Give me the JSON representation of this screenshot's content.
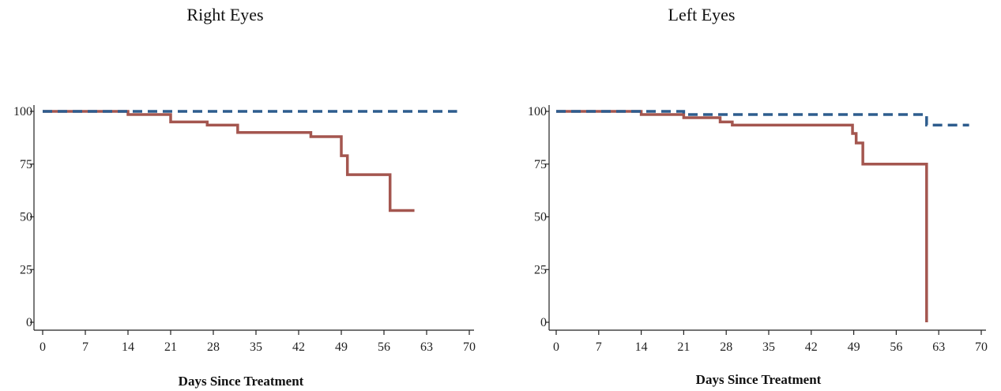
{
  "chart_data": [
    {
      "type": "line",
      "title": "Right Eyes",
      "xlabel": "Days Since Treatment",
      "ylabel": "",
      "xlim": [
        0,
        70
      ],
      "ylim": [
        0,
        100
      ],
      "xticks": [
        0,
        7,
        14,
        21,
        28,
        35,
        42,
        49,
        56,
        63,
        70
      ],
      "yticks": [
        0,
        25,
        50,
        75,
        100
      ],
      "ytick_labels": [
        "0",
        "25",
        "50",
        "75",
        "100"
      ],
      "series": [
        {
          "style": "solid",
          "color": "#a4564f",
          "step": true,
          "x": [
            0,
            14,
            21,
            27,
            32,
            44,
            49,
            50,
            57,
            61
          ],
          "y": [
            100,
            98.5,
            95,
            93.5,
            90,
            88,
            79,
            70,
            53,
            53
          ]
        },
        {
          "style": "dashed",
          "color": "#2e5d8e",
          "step": true,
          "x": [
            0,
            68
          ],
          "y": [
            100,
            100
          ]
        }
      ]
    },
    {
      "type": "line",
      "title": "Left Eyes",
      "xlabel": "Days Since Treatment",
      "ylabel": "",
      "xlim": [
        0,
        70
      ],
      "ylim": [
        0,
        100
      ],
      "xticks": [
        0,
        7,
        14,
        21,
        28,
        35,
        42,
        49,
        56,
        63,
        70
      ],
      "yticks": [
        0,
        25,
        50,
        75,
        100
      ],
      "ytick_labels": [
        "0",
        "25",
        "50",
        "75",
        "100"
      ],
      "series": [
        {
          "style": "solid",
          "color": "#a4564f",
          "step": true,
          "x": [
            0,
            14,
            21,
            27,
            29,
            48.8,
            49.4,
            50.5,
            61,
            61
          ],
          "y": [
            100,
            98.5,
            97,
            95,
            93.5,
            89.5,
            85,
            75,
            0,
            0
          ]
        },
        {
          "style": "dashed",
          "color": "#2e5d8e",
          "step": true,
          "x": [
            0,
            21,
            61,
            68
          ],
          "y": [
            100,
            98.5,
            93.5,
            93.5
          ]
        }
      ]
    }
  ]
}
